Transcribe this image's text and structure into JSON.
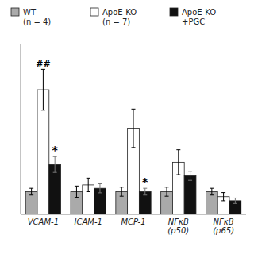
{
  "chart_data": {
    "type": "bar",
    "categories": [
      "VCAM-1",
      "ICAM-1",
      "MCP-1",
      "NFκB\n(p50)",
      "NFκB\n(p65)"
    ],
    "series": [
      {
        "name": "WT\n(n = 4)",
        "color": "#aaaaaa",
        "values": [
          1.0,
          1.0,
          1.0,
          1.0,
          1.0
        ],
        "errors": [
          0.15,
          0.25,
          0.2,
          0.2,
          0.15
        ]
      },
      {
        "name": "ApoE-KO\n(n = 7)",
        "color": "#ffffff",
        "values": [
          5.5,
          1.3,
          3.8,
          2.3,
          0.78
        ],
        "errors": [
          0.9,
          0.3,
          0.85,
          0.55,
          0.18
        ]
      },
      {
        "name": "ApoE-KO\n+PGC",
        "color": "#111111",
        "values": [
          2.2,
          1.15,
          1.0,
          1.7,
          0.6
        ],
        "errors": [
          0.35,
          0.2,
          0.15,
          0.2,
          0.12
        ]
      }
    ],
    "annotations": [
      {
        "text": "##",
        "category": "VCAM-1",
        "series": "ApoE-KO\n(n = 7)"
      },
      {
        "text": "*",
        "category": "VCAM-1",
        "series": "ApoE-KO\n+PGC"
      },
      {
        "text": "*",
        "category": "MCP-1",
        "series": "ApoE-KO\n+PGC"
      }
    ],
    "ylim": [
      0,
      7.5
    ],
    "tick_labels": "x",
    "grid": false,
    "legend": "top"
  }
}
